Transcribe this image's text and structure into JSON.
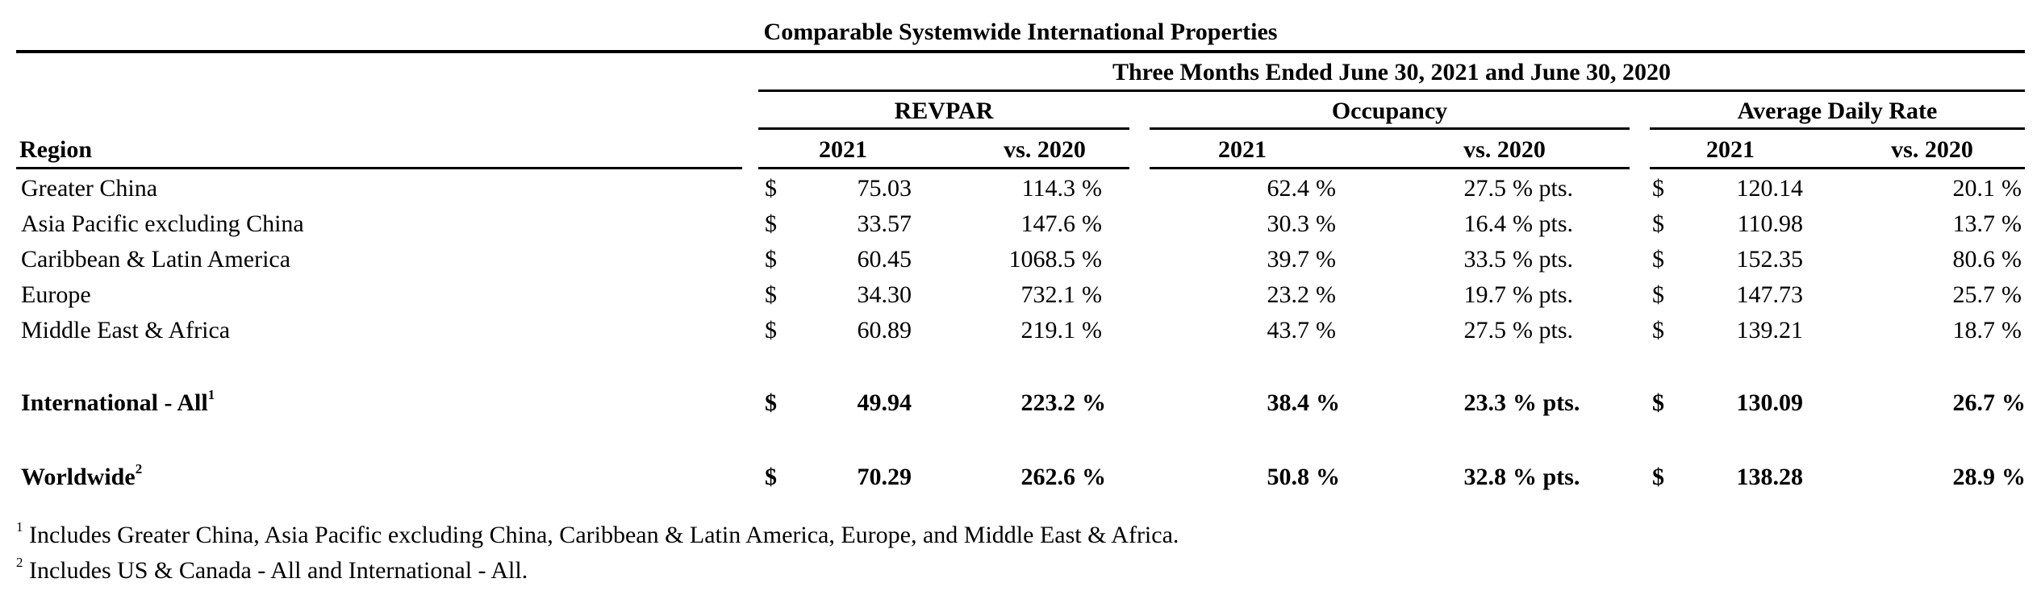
{
  "title": "Comparable Systemwide International Properties",
  "period_header": "Three Months Ended June 30, 2021 and June 30, 2020",
  "region_header": "Region",
  "groups": [
    {
      "label": "REVPAR",
      "col_2021": "2021",
      "col_vs": "vs. 2020"
    },
    {
      "label": "Occupancy",
      "col_2021": "2021",
      "col_vs": "vs. 2020"
    },
    {
      "label": "Average Daily Rate",
      "col_2021": "2021",
      "col_vs": "vs. 2020"
    }
  ],
  "currency_symbol": "$",
  "rows": [
    {
      "region": "Greater China",
      "revpar": "75.03",
      "revpar_vs": "114.3",
      "occ": "62.4",
      "occ_vs": "27.5",
      "adr": "120.14",
      "adr_vs": "20.1"
    },
    {
      "region": "Asia Pacific excluding China",
      "revpar": "33.57",
      "revpar_vs": "147.6",
      "occ": "30.3",
      "occ_vs": "16.4",
      "adr": "110.98",
      "adr_vs": "13.7"
    },
    {
      "region": "Caribbean & Latin America",
      "revpar": "60.45",
      "revpar_vs": "1068.5",
      "occ": "39.7",
      "occ_vs": "33.5",
      "adr": "152.35",
      "adr_vs": "80.6"
    },
    {
      "region": "Europe",
      "revpar": "34.30",
      "revpar_vs": "732.1",
      "occ": "23.2",
      "occ_vs": "19.7",
      "adr": "147.73",
      "adr_vs": "25.7"
    },
    {
      "region": "Middle East & Africa",
      "revpar": "60.89",
      "revpar_vs": "219.1",
      "occ": "43.7",
      "occ_vs": "27.5",
      "adr": "139.21",
      "adr_vs": "18.7"
    }
  ],
  "totals": [
    {
      "region": "International - All",
      "sup": "1",
      "revpar": "49.94",
      "revpar_vs": "223.2",
      "occ": "38.4",
      "occ_vs": "23.3",
      "adr": "130.09",
      "adr_vs": "26.7"
    },
    {
      "region": "Worldwide",
      "sup": "2",
      "revpar": "70.29",
      "revpar_vs": "262.6",
      "occ": "50.8",
      "occ_vs": "32.8",
      "adr": "138.28",
      "adr_vs": "28.9"
    }
  ],
  "units": {
    "percent": "%",
    "pts": "% pts."
  },
  "footnotes": [
    {
      "mark": "1",
      "text": "Includes Greater China, Asia Pacific excluding China, Caribbean & Latin America, Europe, and Middle East & Africa."
    },
    {
      "mark": "2",
      "text": "Includes US & Canada - All and International - All."
    }
  ]
}
